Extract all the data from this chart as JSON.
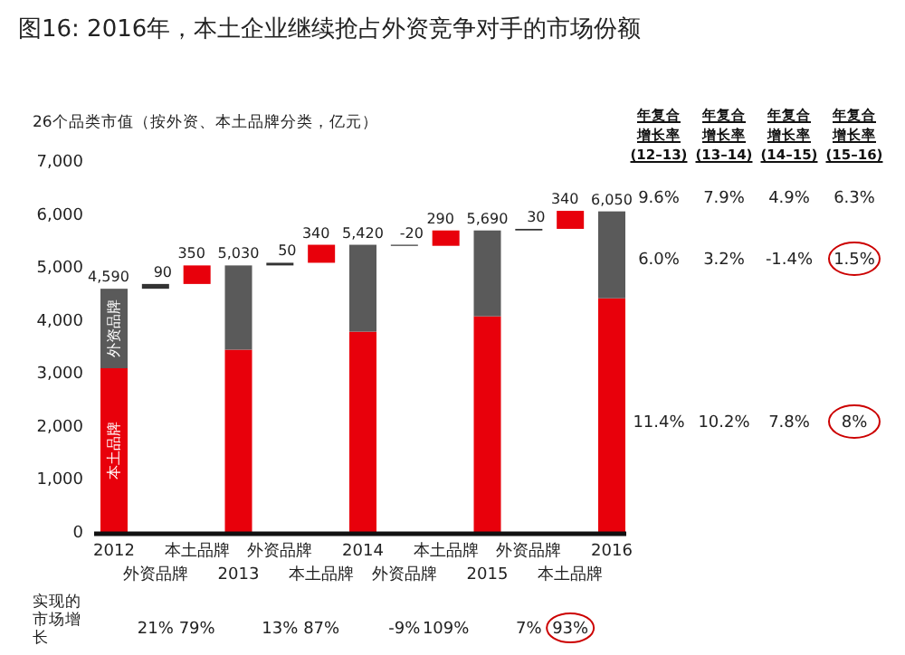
{
  "chart_data": {
    "type": "bar",
    "stacked": true,
    "title": "图16: 2016年，本土企业继续抢占外资竞争对手的市场份额",
    "ylabel": "26个品类市值（按外资、本土品牌分类，亿元）",
    "categories": [
      "2012",
      "外资品牌",
      "本土品牌",
      "2013",
      "外资品牌",
      "本土品牌",
      "2014",
      "外资品牌",
      "本土品牌",
      "2015",
      "外资品牌",
      "本土品牌",
      "2016"
    ],
    "series": [
      {
        "name": "本土品牌",
        "color": "#e8000b",
        "values": [
          3090,
          null,
          null,
          3440,
          null,
          null,
          3780,
          null,
          null,
          4070,
          null,
          null,
          4410
        ]
      },
      {
        "name": "外资品牌",
        "color": "#5a5a5a",
        "values": [
          1500,
          null,
          null,
          1590,
          null,
          null,
          1640,
          null,
          null,
          1620,
          null,
          null,
          1640
        ]
      },
      {
        "values": [
          null,
          90,
          350,
          null,
          50,
          340,
          null,
          -20,
          290,
          null,
          30,
          340,
          null
        ],
        "base": [
          null,
          4590,
          4680,
          null,
          5030,
          5080,
          null,
          5420,
          5400,
          null,
          5690,
          5720,
          null
        ],
        "colors": [
          null,
          "#333333",
          "#e8000b",
          null,
          "#333333",
          "#e8000b",
          null,
          "#333333",
          "#e8000b",
          null,
          "#333333",
          "#e8000b",
          null
        ],
        "value_labels": [
          null,
          "90",
          "350",
          null,
          "50",
          "340",
          null,
          "-20",
          "290",
          null,
          "30",
          "340",
          null
        ]
      }
    ],
    "totals": [
      "4,590",
      null,
      null,
      "5,030",
      null,
      null,
      "5,420",
      null,
      null,
      "5,690",
      null,
      null,
      "6,050"
    ],
    "ylim": [
      0,
      7000
    ],
    "yticks": [
      0,
      {
        "value": 1000,
        "label": "1,000"
      },
      {
        "value": 2000,
        "label": "2,000"
      },
      {
        "value": 3000,
        "label": "3,000"
      },
      {
        "value": 4000,
        "label": "4,000"
      },
      {
        "value": 5000,
        "label": "5,000"
      },
      {
        "value": 6000,
        "label": "6,000"
      },
      {
        "value": 7000,
        "label": "7,000"
      }
    ],
    "annotations": [
      "年复合增长率(12–13)",
      "年复合增长率(13–14)",
      "年复合增长率(14–15)",
      "年复合增长率(15–16)",
      "9.6%",
      "7.9%",
      "4.9%",
      "6.3%",
      "6.0%",
      "3.2%",
      "-1.4%",
      "1.5%",
      "11.4%",
      "10.2%",
      "7.8%",
      "8%",
      "实现的市场增长",
      "21%",
      "79%",
      "13%",
      "87%",
      "-9%",
      "109%",
      "7%",
      "93%"
    ]
  }
}
